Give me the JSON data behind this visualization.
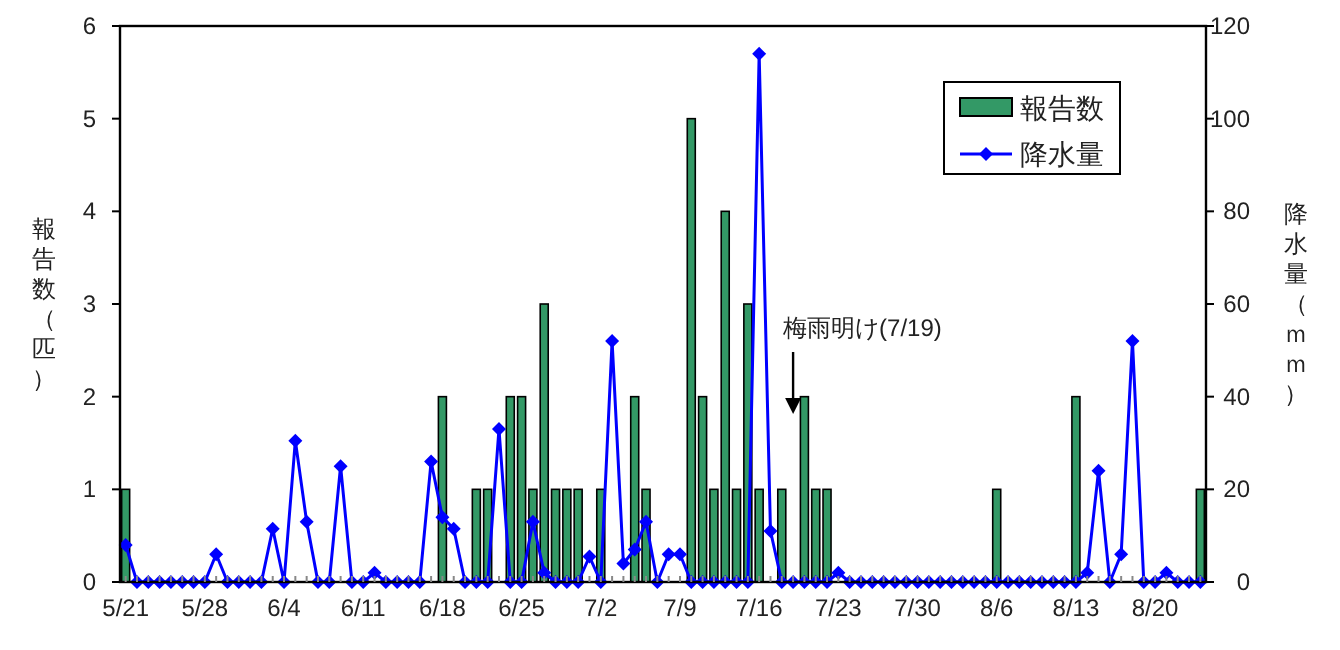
{
  "chart_data": {
    "type": "bar",
    "categories": [
      "5/21",
      null,
      null,
      null,
      null,
      null,
      null,
      "5/28",
      null,
      null,
      null,
      null,
      null,
      null,
      "6/4",
      null,
      null,
      null,
      null,
      null,
      null,
      "6/11",
      null,
      null,
      null,
      null,
      null,
      null,
      "6/18",
      null,
      null,
      null,
      null,
      null,
      null,
      "6/25",
      null,
      null,
      null,
      null,
      null,
      null,
      "7/2",
      null,
      null,
      null,
      null,
      null,
      null,
      "7/9",
      null,
      null,
      null,
      null,
      null,
      null,
      "7/16",
      null,
      null,
      null,
      null,
      null,
      null,
      "7/23",
      null,
      null,
      null,
      null,
      null,
      null,
      "7/30",
      null,
      null,
      null,
      null,
      null,
      null,
      "8/6",
      null,
      null,
      null,
      null,
      null,
      null,
      "8/13",
      null,
      null,
      null,
      null,
      null,
      null,
      "8/20",
      null,
      null,
      null,
      null
    ],
    "series": [
      {
        "name": "報告数",
        "color": "#339966",
        "values": [
          1,
          0,
          0,
          0,
          0,
          0,
          0,
          0,
          0,
          0,
          0,
          0,
          0,
          0,
          0,
          0,
          0,
          0,
          0,
          0,
          0,
          0,
          0,
          0,
          0,
          0,
          0,
          0,
          2,
          0,
          0,
          1,
          1,
          0,
          2,
          2,
          1,
          3,
          1,
          1,
          1,
          0,
          1,
          0,
          0,
          2,
          1,
          0,
          0,
          0,
          5,
          2,
          1,
          4,
          1,
          3,
          1,
          0,
          1,
          0,
          2,
          1,
          1,
          0,
          0,
          0,
          0,
          0,
          0,
          0,
          0,
          0,
          0,
          0,
          0,
          0,
          0,
          1,
          0,
          0,
          0,
          0,
          0,
          0,
          2,
          0,
          0,
          0,
          0,
          0,
          0,
          0,
          0,
          0,
          0,
          1
        ]
      },
      {
        "name": "降水量",
        "type": "line",
        "axis": "y2",
        "color": "#0000ff",
        "marker": "diamond",
        "values": [
          8,
          0,
          0,
          0,
          0,
          0,
          0,
          0,
          6,
          0,
          0,
          0,
          0,
          11.5,
          0,
          30.5,
          13,
          0,
          0,
          25,
          0,
          0,
          2,
          0,
          0,
          0,
          0,
          26,
          14,
          11.5,
          0,
          0,
          0,
          33,
          0,
          0,
          13,
          2,
          0,
          0,
          0,
          5.5,
          0,
          52,
          4,
          7,
          13,
          0,
          6,
          6,
          0,
          0,
          0,
          0,
          0,
          0,
          114,
          11,
          0,
          0,
          0,
          0,
          0,
          2,
          0,
          0,
          0,
          0,
          0,
          0,
          0,
          0,
          0,
          0,
          0,
          0,
          0,
          0,
          0,
          0,
          0,
          0,
          0,
          0,
          0,
          2,
          24,
          0,
          6,
          52,
          0,
          0,
          2,
          0,
          0,
          0
        ]
      }
    ],
    "ylabel": "報告数（匹）",
    "y2label": "降水量（ｍｍ）",
    "ylim": [
      0,
      6
    ],
    "yticks": [
      0,
      1,
      2,
      3,
      4,
      5,
      6
    ],
    "y2lim": [
      0,
      120
    ],
    "y2ticks": [
      0,
      20,
      40,
      60,
      80,
      100,
      120
    ],
    "annotations": [
      "梅雨明け(7/19)"
    ],
    "legend": "top right",
    "grid": false
  }
}
